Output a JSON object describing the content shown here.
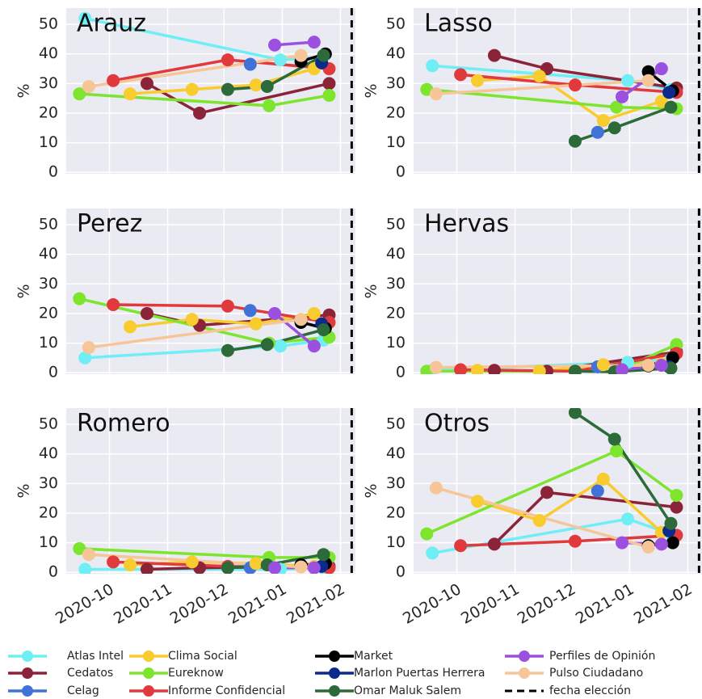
{
  "chart_data": [
    {
      "type": "line",
      "title": "Arauz",
      "ylabel": "%",
      "xlim": [
        "2020-09-08",
        "2021-02-09"
      ],
      "ylim": [
        -0.5,
        55.5
      ],
      "xticks": [
        "2020-10",
        "2020-11",
        "2020-12",
        "2021-01",
        "2021-02"
      ],
      "yticks": [
        0,
        10,
        20,
        30,
        40,
        50
      ],
      "grid": true,
      "vline": "2021-02-07",
      "vline_label": "fecha elección",
      "series": [
        {
          "name": "Atlas Intel",
          "color": "#70eef5",
          "x": [
            "2020-09-18",
            "2020-12-31",
            "2021-01-23"
          ],
          "values": [
            52,
            38,
            39
          ]
        },
        {
          "name": "Cedatos",
          "color": "#8b2339",
          "x": [
            "2020-10-21",
            "2020-11-18",
            "2021-01-26"
          ],
          "values": [
            30,
            20,
            30
          ]
        },
        {
          "name": "Celag",
          "color": "#4172d8",
          "x": [
            "2020-12-15"
          ],
          "values": [
            36.5
          ]
        },
        {
          "name": "Clima Social",
          "color": "#f8cb2e",
          "x": [
            "2020-10-12",
            "2020-11-14",
            "2020-12-18",
            "2021-01-18"
          ],
          "values": [
            26.5,
            28,
            29.5,
            35
          ]
        },
        {
          "name": "Eureknow",
          "color": "#7ee52e",
          "x": [
            "2020-09-15",
            "2020-12-25",
            "2021-01-26"
          ],
          "values": [
            26.5,
            22.5,
            26
          ]
        },
        {
          "name": "Informe Confidencial",
          "color": "#e03a3c",
          "x": [
            "2020-10-03",
            "2020-12-03",
            "2021-01-26"
          ],
          "values": [
            31,
            38,
            35
          ]
        },
        {
          "name": "Market",
          "color": "#000000",
          "x": [
            "2021-01-11",
            "2021-01-24"
          ],
          "values": [
            37.5,
            40
          ]
        },
        {
          "name": "Marlon Puertas Herrera",
          "color": "#0b2a8c",
          "x": [
            "2021-01-22"
          ],
          "values": [
            37
          ]
        },
        {
          "name": "Omar Maluk Salem",
          "color": "#2d6a3a",
          "x": [
            "2020-12-03",
            "2020-12-24",
            "2021-01-23"
          ],
          "values": [
            28,
            29,
            39.5
          ]
        },
        {
          "name": "Perfiles de Opinión",
          "color": "#9b50e0",
          "x": [
            "2020-12-28",
            "2021-01-18"
          ],
          "values": [
            43,
            44
          ]
        },
        {
          "name": "Pulso Ciudadano",
          "color": "#f6c699",
          "x": [
            "2020-09-20",
            "2021-01-11"
          ],
          "values": [
            29,
            39.5
          ]
        }
      ]
    },
    {
      "type": "line",
      "title": "Lasso",
      "ylabel": "%",
      "xlim": [
        "2020-09-08",
        "2021-02-09"
      ],
      "ylim": [
        -0.5,
        55.5
      ],
      "xticks": [
        "2020-10",
        "2020-11",
        "2020-12",
        "2021-01",
        "2021-02"
      ],
      "yticks": [
        0,
        10,
        20,
        30,
        40,
        50
      ],
      "grid": true,
      "vline": "2021-02-07",
      "series": [
        {
          "x": [
            "2020-09-18",
            "2020-12-31",
            "2021-01-23"
          ],
          "values": [
            36,
            31,
            28
          ]
        },
        {
          "x": [
            "2020-10-21",
            "2020-11-18",
            "2021-01-26"
          ],
          "values": [
            39.5,
            35,
            28.5
          ]
        },
        {
          "x": [
            "2020-12-15"
          ],
          "values": [
            13.5
          ]
        },
        {
          "x": [
            "2020-10-12",
            "2020-11-14",
            "2020-12-18",
            "2021-01-18"
          ],
          "values": [
            31,
            32.5,
            17.5,
            24
          ]
        },
        {
          "x": [
            "2020-09-15",
            "2020-12-25",
            "2021-01-26"
          ],
          "values": [
            28,
            22,
            21.5
          ]
        },
        {
          "x": [
            "2020-10-03",
            "2020-12-03",
            "2021-01-26"
          ],
          "values": [
            33,
            29.5,
            27
          ]
        },
        {
          "x": [
            "2021-01-11",
            "2021-01-24"
          ],
          "values": [
            34,
            27.5
          ]
        },
        {
          "x": [
            "2021-01-22"
          ],
          "values": [
            27
          ]
        },
        {
          "x": [
            "2020-12-03",
            "2020-12-24",
            "2021-01-23"
          ],
          "values": [
            10.5,
            15,
            22
          ]
        },
        {
          "x": [
            "2020-12-28",
            "2021-01-18"
          ],
          "values": [
            25.5,
            35
          ]
        },
        {
          "x": [
            "2020-09-20",
            "2021-01-11"
          ],
          "values": [
            26.5,
            31
          ]
        }
      ]
    },
    {
      "type": "line",
      "title": "Perez",
      "ylabel": "%",
      "xlim": [
        "2020-09-08",
        "2021-02-09"
      ],
      "ylim": [
        -0.5,
        55.5
      ],
      "xticks": [
        "2020-10",
        "2020-11",
        "2020-12",
        "2021-01",
        "2021-02"
      ],
      "yticks": [
        0,
        10,
        20,
        30,
        40,
        50
      ],
      "grid": true,
      "vline": "2021-02-07",
      "series": [
        {
          "x": [
            "2020-09-18",
            "2020-12-31",
            "2021-01-23"
          ],
          "values": [
            5,
            9,
            11
          ]
        },
        {
          "x": [
            "2020-10-21",
            "2020-11-18",
            "2021-01-26"
          ],
          "values": [
            20,
            16,
            19.5
          ]
        },
        {
          "x": [
            "2020-12-15"
          ],
          "values": [
            21
          ]
        },
        {
          "x": [
            "2020-10-12",
            "2020-11-14",
            "2020-12-18",
            "2021-01-18"
          ],
          "values": [
            15.5,
            18,
            16.5,
            20
          ]
        },
        {
          "x": [
            "2020-09-15",
            "2020-12-25",
            "2021-01-26"
          ],
          "values": [
            25,
            10,
            12
          ]
        },
        {
          "x": [
            "2020-10-03",
            "2020-12-03",
            "2021-01-26"
          ],
          "values": [
            23,
            22.5,
            17
          ]
        },
        {
          "x": [
            "2021-01-11",
            "2021-01-24"
          ],
          "values": [
            17,
            15
          ]
        },
        {
          "x": [
            "2021-01-22"
          ],
          "values": [
            16.5
          ]
        },
        {
          "x": [
            "2020-12-03",
            "2020-12-24",
            "2021-01-23"
          ],
          "values": [
            7.5,
            9.5,
            14.5
          ]
        },
        {
          "x": [
            "2020-12-28",
            "2021-01-18"
          ],
          "values": [
            20,
            9
          ]
        },
        {
          "x": [
            "2020-09-20",
            "2021-01-11"
          ],
          "values": [
            8.5,
            18
          ]
        }
      ]
    },
    {
      "type": "line",
      "title": "Hervas",
      "ylabel": "%",
      "xlim": [
        "2020-09-08",
        "2021-02-09"
      ],
      "ylim": [
        -0.5,
        55.5
      ],
      "xticks": [
        "2020-10",
        "2020-11",
        "2020-12",
        "2021-01",
        "2021-02"
      ],
      "yticks": [
        0,
        10,
        20,
        30,
        40,
        50
      ],
      "grid": true,
      "vline": "2021-02-07",
      "series": [
        {
          "x": [
            "2020-09-18",
            "2020-12-31",
            "2021-01-23"
          ],
          "values": [
            0.8,
            3.5,
            4.5
          ]
        },
        {
          "x": [
            "2020-10-21",
            "2020-11-18",
            "2021-01-26"
          ],
          "values": [
            0.8,
            0.5,
            7
          ]
        },
        {
          "x": [
            "2020-12-15"
          ],
          "values": [
            2
          ]
        },
        {
          "x": [
            "2020-10-12",
            "2020-11-14",
            "2020-12-18",
            "2021-01-18"
          ],
          "values": [
            0.8,
            0.5,
            2.7,
            3
          ]
        },
        {
          "x": [
            "2020-09-15",
            "2020-12-25",
            "2021-01-26"
          ],
          "values": [
            0.5,
            0.5,
            9.5
          ]
        },
        {
          "x": [
            "2020-10-03",
            "2020-12-03",
            "2021-01-26"
          ],
          "values": [
            1,
            0.5,
            6.5
          ]
        },
        {
          "x": [
            "2021-01-11",
            "2021-01-24"
          ],
          "values": [
            2.3,
            5
          ]
        },
        {
          "x": [
            "2021-01-22"
          ],
          "values": [
            2
          ]
        },
        {
          "x": [
            "2020-12-03",
            "2020-12-24",
            "2021-01-23"
          ],
          "values": [
            0.5,
            0.3,
            1.5
          ]
        },
        {
          "x": [
            "2020-12-28",
            "2021-01-18"
          ],
          "values": [
            1,
            2.5
          ]
        },
        {
          "x": [
            "2020-09-20",
            "2021-01-11"
          ],
          "values": [
            1.8,
            2.5
          ]
        }
      ]
    },
    {
      "type": "line",
      "title": "Romero",
      "ylabel": "%",
      "xlim": [
        "2020-09-08",
        "2021-02-09"
      ],
      "ylim": [
        -0.5,
        55.5
      ],
      "xticks": [
        "2020-10",
        "2020-11",
        "2020-12",
        "2021-01",
        "2021-02"
      ],
      "yticks": [
        0,
        10,
        20,
        30,
        40,
        50
      ],
      "grid": true,
      "vline": "2021-02-07",
      "series": [
        {
          "x": [
            "2020-09-18",
            "2020-12-31",
            "2021-01-23"
          ],
          "values": [
            1,
            1,
            1.5
          ]
        },
        {
          "x": [
            "2020-10-21",
            "2020-11-18",
            "2021-01-26"
          ],
          "values": [
            1,
            1.5,
            2
          ]
        },
        {
          "x": [
            "2020-12-15"
          ],
          "values": [
            1.5
          ]
        },
        {
          "x": [
            "2020-10-12",
            "2020-11-14",
            "2020-12-18",
            "2021-01-18"
          ],
          "values": [
            2.5,
            3.5,
            3,
            2
          ]
        },
        {
          "x": [
            "2020-09-15",
            "2020-12-25",
            "2021-01-26"
          ],
          "values": [
            8,
            5,
            5
          ]
        },
        {
          "x": [
            "2020-10-03",
            "2020-12-03",
            "2021-01-26"
          ],
          "values": [
            3.5,
            2,
            1.5
          ]
        },
        {
          "x": [
            "2021-01-11",
            "2021-01-24"
          ],
          "values": [
            2.5,
            3
          ]
        },
        {
          "x": [
            "2021-01-22"
          ],
          "values": [
            2
          ]
        },
        {
          "x": [
            "2020-12-03",
            "2020-12-24",
            "2021-01-23"
          ],
          "values": [
            1.5,
            2.5,
            6
          ]
        },
        {
          "x": [
            "2020-12-28",
            "2021-01-18"
          ],
          "values": [
            1.5,
            1.5
          ]
        },
        {
          "x": [
            "2020-09-20",
            "2021-01-11"
          ],
          "values": [
            6,
            1.8
          ]
        }
      ]
    },
    {
      "type": "line",
      "title": "Otros",
      "ylabel": "%",
      "xlim": [
        "2020-09-08",
        "2021-02-09"
      ],
      "ylim": [
        -0.5,
        55.5
      ],
      "xticks": [
        "2020-10",
        "2020-11",
        "2020-12",
        "2021-01",
        "2021-02"
      ],
      "yticks": [
        0,
        10,
        20,
        30,
        40,
        50
      ],
      "grid": true,
      "vline": "2021-02-07",
      "series": [
        {
          "x": [
            "2020-09-18",
            "2020-12-31",
            "2021-01-23"
          ],
          "values": [
            6.5,
            18,
            13
          ]
        },
        {
          "x": [
            "2020-10-21",
            "2020-11-18",
            "2021-01-26"
          ],
          "values": [
            9.5,
            27,
            22
          ]
        },
        {
          "x": [
            "2020-12-15"
          ],
          "values": [
            27.5
          ]
        },
        {
          "x": [
            "2020-10-12",
            "2020-11-14",
            "2020-12-18",
            "2021-01-18"
          ],
          "values": [
            24,
            17.5,
            31.5,
            13.5
          ]
        },
        {
          "x": [
            "2020-09-15",
            "2020-12-25",
            "2021-01-26"
          ],
          "values": [
            13,
            41,
            26
          ]
        },
        {
          "x": [
            "2020-10-03",
            "2020-12-03",
            "2021-01-26"
          ],
          "values": [
            9,
            10.5,
            12.5
          ]
        },
        {
          "x": [
            "2021-01-11",
            "2021-01-24"
          ],
          "values": [
            9,
            10
          ]
        },
        {
          "x": [
            "2021-01-22"
          ],
          "values": [
            14
          ]
        },
        {
          "x": [
            "2020-12-03",
            "2020-12-24",
            "2021-01-23"
          ],
          "values": [
            54,
            45,
            16.5
          ]
        },
        {
          "x": [
            "2020-12-28",
            "2021-01-18"
          ],
          "values": [
            10,
            9.5
          ]
        },
        {
          "x": [
            "2020-09-20",
            "2021-01-11"
          ],
          "values": [
            28.5,
            8.5
          ]
        }
      ]
    }
  ]
}
